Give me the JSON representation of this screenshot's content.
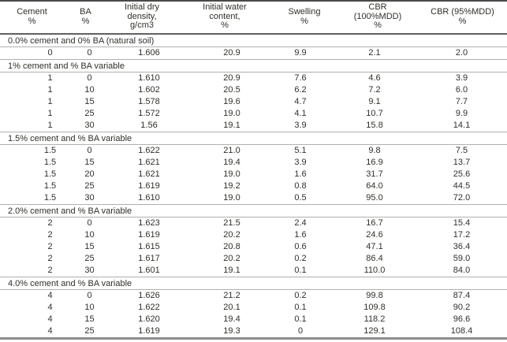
{
  "colors": {
    "text": "#2f3129",
    "top_border": "#4a4a4a",
    "header_rule": "#616161",
    "section_rule": "#b0b0b0",
    "bottom_border": "#8e8e8e",
    "background": "#ffffff"
  },
  "table": {
    "columns": [
      "Cement\n%",
      "BA\n%",
      "Initial dry\ndensity,\ng/cm3",
      "Initial water\ncontent,\n%",
      "Swelling\n%",
      "CBR (100%MDD)\n%",
      "CBR (95%MDD)\n%"
    ],
    "sections": [
      {
        "header": "0.0% cement and 0% BA (natural soil)",
        "rows": [
          [
            "0",
            "0",
            "1.606",
            "20.9",
            "9.9",
            "2.1",
            "2.0"
          ]
        ]
      },
      {
        "header": "1% cement and % BA variable",
        "rows": [
          [
            "1",
            "0",
            "1.610",
            "20.9",
            "7.6",
            "4.6",
            "3.9"
          ],
          [
            "1",
            "10",
            "1.602",
            "20.5",
            "6.2",
            "7.2",
            "6.0"
          ],
          [
            "1",
            "15",
            "1.578",
            "19.6",
            "4.7",
            "9.1",
            "7.7"
          ],
          [
            "1",
            "25",
            "1.572",
            "19.0",
            "4.1",
            "10.7",
            "9.9"
          ],
          [
            "1",
            "30",
            "1.56",
            "19.1",
            "3.9",
            "15.8",
            "14.1"
          ]
        ]
      },
      {
        "header": "1.5% cement and % BA variable",
        "rows": [
          [
            "1.5",
            "0",
            "1.622",
            "21.0",
            "5.1",
            "9.8",
            "7.5"
          ],
          [
            "1.5",
            "15",
            "1.621",
            "19.4",
            "3.9",
            "16.9",
            "13.7"
          ],
          [
            "1.5",
            "20",
            "1.621",
            "19.0",
            "1.6",
            "31.7",
            "25.6"
          ],
          [
            "1.5",
            "25",
            "1.619",
            "19.2",
            "0.8",
            "64.0",
            "44.5"
          ],
          [
            "1.5",
            "30",
            "1.610",
            "19.0",
            "0.5",
            "95.0",
            "72.0"
          ]
        ]
      },
      {
        "header": "2.0% cement and % BA variable",
        "rows": [
          [
            "2",
            "0",
            "1.623",
            "21.5",
            "2.4",
            "16.7",
            "15.4"
          ],
          [
            "2",
            "10",
            "1.619",
            "20.2",
            "1.6",
            "24.6",
            "17.2"
          ],
          [
            "2",
            "15",
            "1.615",
            "20.8",
            "0.6",
            "47.1",
            "36.4"
          ],
          [
            "2",
            "25",
            "1.617",
            "20.2",
            "0.2",
            "86.4",
            "59.0"
          ],
          [
            "2",
            "30",
            "1.601",
            "19.1",
            "0.1",
            "110.0",
            "84.0"
          ]
        ]
      },
      {
        "header": "4.0% cement and % BA variable",
        "rows": [
          [
            "4",
            "0",
            "1.626",
            "21.2",
            "0.2",
            "99.8",
            "87.4"
          ],
          [
            "4",
            "10",
            "1.622",
            "20.1",
            "0.1",
            "109.8",
            "90.2"
          ],
          [
            "4",
            "15",
            "1.620",
            "19.4",
            "0.1",
            "118.2",
            "96.6"
          ],
          [
            "4",
            "25",
            "1.619",
            "19.3",
            "0",
            "129.1",
            "108.4"
          ]
        ]
      }
    ]
  }
}
